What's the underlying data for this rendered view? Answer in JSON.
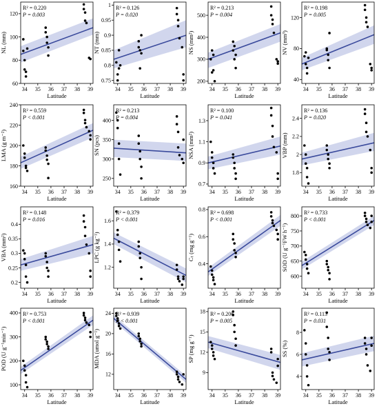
{
  "figure": {
    "xlabel": "Latitude",
    "x_ticks": [
      34,
      35,
      36,
      37,
      38,
      39
    ],
    "colors": {
      "line": "#3a4a9c",
      "band": "#9aa3d6",
      "points": "#000000"
    }
  },
  "chart_data": [
    {
      "type": "scatter",
      "ylabel": "NL (mm)",
      "ylim": [
        60,
        130
      ],
      "yticks": [
        60,
        80,
        100,
        120
      ],
      "r2": "R² = 0.220",
      "p": "P = 0.003",
      "fit": [
        85,
        108
      ],
      "band": [
        [
          78,
          92
        ],
        [
          102,
          116
        ]
      ],
      "x": [
        33.9,
        33.9,
        34.0,
        34.0,
        34.1,
        34.1,
        34.2,
        35.6,
        35.6,
        35.7,
        35.7,
        35.8,
        35.8,
        38.5,
        38.5,
        38.6,
        38.6,
        38.7,
        38.9,
        39.0
      ],
      "y": [
        98,
        88,
        72,
        80,
        66,
        70,
        90,
        108,
        104,
        100,
        95,
        91,
        84,
        128,
        124,
        121,
        114,
        112,
        82,
        81
      ]
    },
    {
      "type": "scatter",
      "ylabel": "NT (mm)",
      "ylim": [
        0.74,
        1.01
      ],
      "yticks": [
        0.75,
        0.8,
        0.85,
        0.9,
        0.95,
        1.0
      ],
      "r2": "R² = 0.126",
      "p": "P = 0.020",
      "fit": [
        0.82,
        0.9
      ],
      "band": [
        [
          0.79,
          0.85
        ],
        [
          0.86,
          0.95
        ]
      ],
      "x": [
        33.9,
        34.0,
        34.0,
        34.1,
        34.1,
        34.2,
        35.6,
        35.6,
        35.7,
        35.7,
        35.8,
        35.8,
        38.5,
        38.5,
        38.6,
        38.6,
        38.7,
        38.9,
        39.0,
        39.0
      ],
      "y": [
        0.81,
        0.77,
        0.75,
        0.79,
        0.85,
        0.8,
        0.88,
        0.86,
        0.85,
        0.79,
        0.84,
        0.9,
        0.99,
        0.97,
        0.95,
        0.93,
        0.89,
        0.86,
        0.77,
        0.75
      ]
    },
    {
      "type": "scatter",
      "ylabel": "NS (mm²)",
      "ylim": [
        190,
        560
      ],
      "yticks": [
        200,
        300,
        400,
        500
      ],
      "r2": "R² = 0.213",
      "p": "P = 0.004",
      "fit": [
        300,
        420
      ],
      "band": [
        [
          260,
          330
        ],
        [
          380,
          460
        ]
      ],
      "x": [
        33.9,
        34.0,
        34.0,
        34.1,
        34.1,
        34.2,
        35.6,
        35.6,
        35.7,
        35.7,
        35.8,
        35.8,
        38.5,
        38.5,
        38.6,
        38.6,
        38.7,
        38.9,
        39.0,
        39.0
      ],
      "y": [
        300,
        340,
        240,
        320,
        250,
        200,
        380,
        340,
        360,
        300,
        320,
        260,
        540,
        500,
        480,
        460,
        420,
        300,
        280,
        290
      ]
    },
    {
      "type": "scatter",
      "ylabel": "NV (mm³)",
      "ylim": [
        35,
        140
      ],
      "yticks": [
        40,
        80,
        120
      ],
      "r2": "R² = 0.198",
      "p": "P = 0.005",
      "fit": [
        60,
        98
      ],
      "band": [
        [
          52,
          68
        ],
        [
          86,
          110
        ]
      ],
      "x": [
        33.9,
        34.0,
        34.0,
        34.1,
        34.1,
        34.2,
        35.6,
        35.6,
        35.7,
        35.7,
        35.8,
        35.8,
        38.5,
        38.5,
        38.6,
        38.6,
        38.7,
        38.9,
        39.0,
        39.0
      ],
      "y": [
        70,
        60,
        75,
        48,
        55,
        68,
        78,
        80,
        72,
        65,
        100,
        55,
        136,
        130,
        120,
        114,
        108,
        60,
        55,
        52
      ]
    },
    {
      "type": "scatter",
      "ylabel": "LMA (g m⁻²)",
      "ylim": [
        160,
        240
      ],
      "yticks": [
        160,
        180,
        200,
        220,
        240
      ],
      "r2": "R² = 0.559",
      "p": "P < 0.001",
      "fit": [
        183,
        215
      ],
      "band": [
        [
          177,
          189
        ],
        [
          208,
          222
        ]
      ],
      "x": [
        33.9,
        34.0,
        34.0,
        34.1,
        34.1,
        34.2,
        35.6,
        35.6,
        35.7,
        35.7,
        35.8,
        35.8,
        38.5,
        38.5,
        38.6,
        38.6,
        38.7,
        38.9,
        39.0,
        39.0
      ],
      "y": [
        200,
        192,
        188,
        180,
        178,
        175,
        198,
        195,
        190,
        186,
        182,
        168,
        235,
        232,
        225,
        222,
        218,
        214,
        210,
        206
      ]
    },
    {
      "type": "scatter",
      "ylabel": "SN (pcs)",
      "ylim": [
        230,
        440
      ],
      "yticks": [
        250,
        300,
        350,
        400
      ],
      "r2": "R² = 0.213",
      "p": "P = 0.004",
      "fit": [
        328,
        316
      ],
      "band": [
        [
          305,
          350
        ],
        [
          295,
          340
        ]
      ],
      "x": [
        33.9,
        34.0,
        34.0,
        34.1,
        34.1,
        34.2,
        35.6,
        35.6,
        35.7,
        35.7,
        35.8,
        35.8,
        38.5,
        38.5,
        38.6,
        38.6,
        38.7,
        38.9,
        39.0,
        39.0
      ],
      "y": [
        420,
        400,
        380,
        340,
        300,
        260,
        360,
        340,
        320,
        300,
        280,
        250,
        410,
        390,
        370,
        330,
        310,
        300,
        290,
        350
      ]
    },
    {
      "type": "scatter",
      "ylabel": "NSA (mm²)",
      "ylim": [
        0.68,
        1.45
      ],
      "yticks": [
        0.7,
        0.9,
        1.1,
        1.3
      ],
      "r2": "R² = 0.100",
      "p": "P = 0.041",
      "fit": [
        0.9,
        1.06
      ],
      "band": [
        [
          0.84,
          0.96
        ],
        [
          0.98,
          1.15
        ]
      ],
      "x": [
        33.9,
        34.0,
        34.0,
        34.1,
        34.1,
        34.2,
        35.6,
        35.6,
        35.7,
        35.7,
        35.8,
        35.8,
        38.5,
        38.5,
        38.6,
        38.6,
        38.7,
        38.9,
        39.0,
        39.0
      ],
      "y": [
        1.1,
        1.0,
        0.95,
        0.9,
        0.85,
        0.8,
        0.98,
        0.95,
        0.9,
        0.85,
        0.8,
        0.75,
        1.42,
        1.35,
        1.25,
        1.15,
        1.05,
        1.0,
        0.8,
        0.75
      ]
    },
    {
      "type": "scatter",
      "ylabel": "VBP (mm)",
      "ylim": [
        1.65,
        2.55
      ],
      "yticks": [
        1.8,
        2.0,
        2.2,
        2.4
      ],
      "r2": "R² = 0.136",
      "p": "P = 0.020",
      "fit": [
        1.95,
        2.13
      ],
      "band": [
        [
          1.88,
          2.02
        ],
        [
          2.04,
          2.24
        ]
      ],
      "x": [
        33.9,
        34.0,
        34.0,
        34.1,
        34.1,
        34.2,
        35.6,
        35.6,
        35.7,
        35.7,
        35.8,
        35.8,
        38.5,
        38.5,
        38.6,
        38.6,
        38.7,
        38.9,
        39.0,
        39.0
      ],
      "y": [
        2.1,
        2.0,
        1.9,
        1.85,
        1.75,
        1.68,
        2.1,
        2.05,
        2.0,
        1.95,
        1.9,
        1.85,
        2.5,
        2.45,
        2.35,
        2.25,
        2.2,
        2.05,
        1.85,
        1.8
      ]
    },
    {
      "type": "scatter",
      "ylabel": "VBA (mm²)",
      "ylim": [
        0.18,
        0.46
      ],
      "yticks": [
        0.2,
        0.25,
        0.3,
        0.35,
        0.4
      ],
      "r2": "R² = 0.148",
      "p": "P = 0.016",
      "fit": [
        0.26,
        0.33
      ],
      "band": [
        [
          0.24,
          0.28
        ],
        [
          0.3,
          0.36
        ]
      ],
      "x": [
        33.9,
        34.0,
        34.0,
        34.1,
        34.1,
        34.2,
        35.6,
        35.6,
        35.7,
        35.7,
        35.8,
        35.8,
        38.5,
        38.5,
        38.6,
        38.6,
        38.7,
        38.9,
        39.0,
        39.0
      ],
      "y": [
        0.31,
        0.3,
        0.28,
        0.26,
        0.22,
        0.2,
        0.3,
        0.29,
        0.27,
        0.25,
        0.24,
        0.22,
        0.43,
        0.41,
        0.39,
        0.36,
        0.33,
        0.3,
        0.24,
        0.22
      ]
    },
    {
      "type": "scatter",
      "ylabel": "LPC (g kg⁻¹)",
      "ylim": [
        1.02,
        1.72
      ],
      "yticks": [
        1.2,
        1.4,
        1.6
      ],
      "r2": "R² = 0.379",
      "p": "P < 0.001",
      "fit": [
        1.45,
        1.13
      ],
      "band": [
        [
          1.4,
          1.5
        ],
        [
          1.07,
          1.19
        ]
      ],
      "x": [
        33.9,
        34.0,
        34.0,
        34.1,
        34.1,
        34.2,
        35.6,
        35.6,
        35.7,
        35.7,
        35.8,
        35.8,
        38.5,
        38.5,
        38.6,
        38.6,
        38.7,
        38.9,
        39.0,
        39.0
      ],
      "y": [
        1.68,
        1.52,
        1.48,
        1.42,
        1.35,
        1.25,
        1.42,
        1.38,
        1.32,
        1.28,
        1.2,
        1.1,
        1.22,
        1.18,
        1.12,
        1.1,
        1.08,
        1.05,
        1.1,
        1.12
      ]
    },
    {
      "type": "scatter",
      "ylabel": "Cₜ (mg g⁻¹)",
      "ylim": [
        0.22,
        0.82
      ],
      "yticks": [
        0.4,
        0.6,
        0.8
      ],
      "r2": "R² = 0.698",
      "p": "P < 0.001",
      "fit": [
        0.34,
        0.72
      ],
      "band": [
        [
          0.31,
          0.37
        ],
        [
          0.68,
          0.76
        ]
      ],
      "x": [
        33.9,
        34.0,
        34.0,
        34.1,
        34.1,
        34.2,
        35.6,
        35.6,
        35.7,
        35.7,
        35.8,
        35.8,
        38.5,
        38.5,
        38.6,
        38.6,
        38.7,
        38.9,
        39.0,
        39.0
      ],
      "y": [
        0.38,
        0.35,
        0.32,
        0.3,
        0.28,
        0.25,
        0.62,
        0.58,
        0.55,
        0.5,
        0.48,
        0.45,
        0.78,
        0.75,
        0.72,
        0.7,
        0.68,
        0.65,
        0.62,
        0.58
      ]
    },
    {
      "type": "scatter",
      "ylabel": "SOD (U g⁻¹FW h⁻¹)",
      "ylim": [
        560,
        830
      ],
      "yticks": [
        600,
        650,
        700,
        750,
        800
      ],
      "r2": "R² = 0.733",
      "p": "P < 0.001",
      "fit": [
        635,
        785
      ],
      "band": [
        [
          622,
          648
        ],
        [
          770,
          800
        ]
      ],
      "x": [
        33.9,
        34.0,
        34.0,
        34.1,
        34.1,
        34.2,
        35.6,
        35.6,
        35.7,
        35.7,
        35.8,
        35.8,
        38.5,
        38.5,
        38.6,
        38.6,
        38.7,
        38.9,
        39.0,
        39.0
      ],
      "y": [
        680,
        670,
        655,
        640,
        625,
        610,
        650,
        640,
        630,
        620,
        610,
        590,
        810,
        800,
        790,
        780,
        770,
        760,
        800,
        780
      ]
    },
    {
      "type": "scatter",
      "ylabel": "POD (U g⁻¹min⁻¹)",
      "ylim": [
        80,
        420
      ],
      "yticks": [
        100,
        200,
        300,
        400
      ],
      "r2": "R² = 0.753",
      "p": "P < 0.001",
      "fit": [
        160,
        370
      ],
      "band": [
        [
          145,
          175
        ],
        [
          350,
          390
        ]
      ],
      "x": [
        33.9,
        34.0,
        34.0,
        34.1,
        34.1,
        34.2,
        35.6,
        35.6,
        35.7,
        35.7,
        35.8,
        35.8,
        38.5,
        38.5,
        38.6,
        38.6,
        38.7,
        38.9,
        39.0,
        39.0
      ],
      "y": [
        200,
        180,
        160,
        140,
        110,
        90,
        300,
        290,
        280,
        270,
        260,
        250,
        400,
        390,
        380,
        370,
        360,
        350,
        320,
        300
      ]
    },
    {
      "type": "scatter",
      "ylabel": "MDA (umol g⁻¹)",
      "ylim": [
        9,
        25
      ],
      "yticks": [
        12,
        16,
        20,
        24
      ],
      "r2": "R² = 0.939",
      "p": "P < 0.001",
      "fit": [
        23.0,
        11.0
      ],
      "band": [
        [
          22.4,
          23.6
        ],
        [
          10.3,
          11.7
        ]
      ],
      "x": [
        33.9,
        33.9,
        34.0,
        34.0,
        34.1,
        34.1,
        34.2,
        35.6,
        35.6,
        35.7,
        35.7,
        35.8,
        35.8,
        38.5,
        38.5,
        38.6,
        38.6,
        38.7,
        38.9,
        39.0
      ],
      "y": [
        24.0,
        23.5,
        23.0,
        22.5,
        22.0,
        21.5,
        21.0,
        20.0,
        19.5,
        19.0,
        18.5,
        18.0,
        17.5,
        12.5,
        12.0,
        11.5,
        11.0,
        10.5,
        10.0,
        12.0
      ]
    },
    {
      "type": "scatter",
      "ylabel": "SP (mg g⁻¹)",
      "ylim": [
        6.5,
        18.5
      ],
      "yticks": [
        9,
        12,
        15,
        18
      ],
      "r2": "R² = 0.206",
      "p": "P = 0.005",
      "fit": [
        13.5,
        10.5
      ],
      "band": [
        [
          12.6,
          14.4
        ],
        [
          9.4,
          11.6
        ]
      ],
      "x": [
        33.9,
        34.0,
        34.0,
        34.1,
        34.1,
        34.2,
        35.6,
        35.6,
        35.7,
        35.7,
        35.8,
        35.8,
        38.5,
        38.5,
        38.6,
        38.6,
        38.7,
        38.9,
        39.0,
        39.0
      ],
      "y": [
        13.5,
        13.0,
        12.5,
        12.0,
        11.5,
        11.0,
        18.0,
        17.5,
        16.0,
        15.0,
        14.0,
        13.0,
        12.5,
        12.0,
        9.0,
        8.5,
        8.0,
        7.5,
        11.0,
        10.0
      ]
    },
    {
      "type": "scatter",
      "ylabel": "SS (%)",
      "ylim": [
        2.8,
        10.2
      ],
      "yticks": [
        4,
        6,
        8
      ],
      "r2": "R² = 0.113",
      "p": "P = 0.031",
      "fit": [
        5.5,
        7.0
      ],
      "band": [
        [
          4.9,
          6.1
        ],
        [
          6.3,
          7.7
        ]
      ],
      "x": [
        33.9,
        34.0,
        34.0,
        34.1,
        34.1,
        34.2,
        35.6,
        35.6,
        35.7,
        35.7,
        35.8,
        35.8,
        38.5,
        38.5,
        38.6,
        38.6,
        38.7,
        38.9,
        39.0,
        39.0
      ],
      "y": [
        8.2,
        7.0,
        6.0,
        5.0,
        4.0,
        3.2,
        9.8,
        8.5,
        7.5,
        6.5,
        6.2,
        5.5,
        7.5,
        7.0,
        6.5,
        6.0,
        5.0,
        4.5,
        7.5,
        6.8
      ]
    }
  ]
}
